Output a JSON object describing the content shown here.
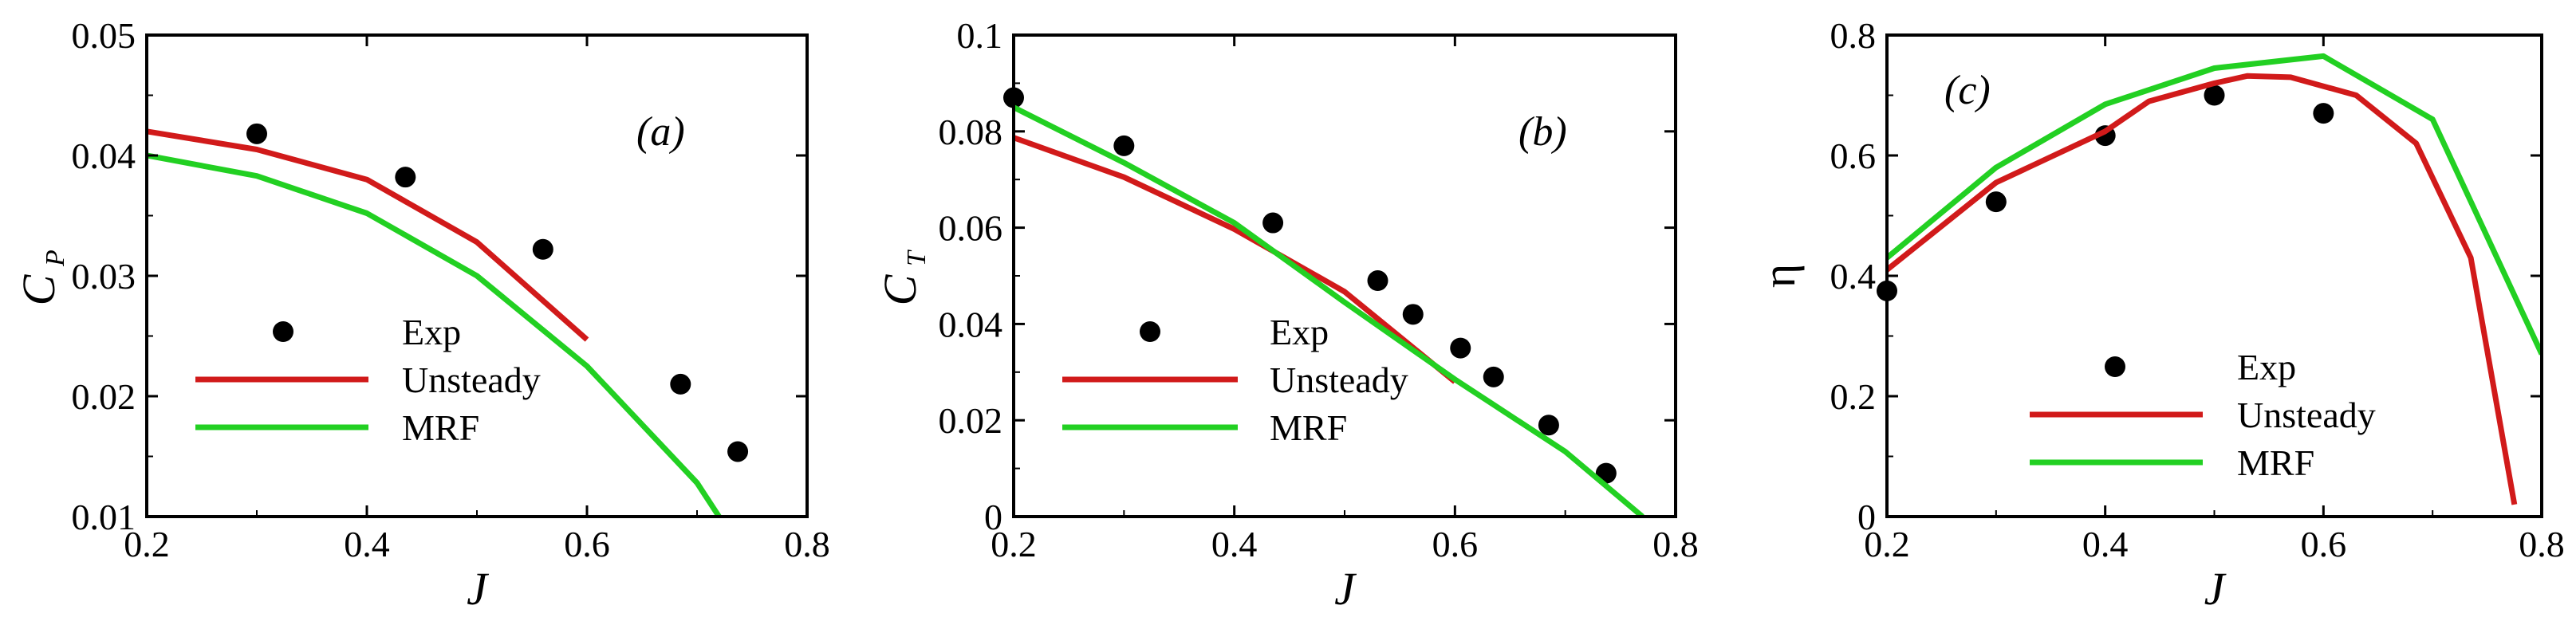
{
  "colors": {
    "exp": "#000000",
    "unsteady": "#d11a1a",
    "mrf": "#22d022",
    "axis": "#000000"
  },
  "legend": {
    "exp": "Exp",
    "unsteady": "Unsteady",
    "mrf": "MRF"
  },
  "chart_data": [
    {
      "type": "line",
      "panel_label": "(a)",
      "xlabel": "J",
      "ylabel_main": "C",
      "ylabel_sub": "P",
      "xlim": [
        0.2,
        0.8
      ],
      "ylim": [
        0.01,
        0.05
      ],
      "xticks": [
        0.2,
        0.4,
        0.6,
        0.8
      ],
      "xtick_labels": [
        "0.2",
        "0.4",
        "0.6",
        "0.8"
      ],
      "yticks": [
        0.01,
        0.02,
        0.03,
        0.04,
        0.05
      ],
      "ytick_labels": [
        "0.01",
        "0.02",
        "0.03",
        "0.04",
        "0.05"
      ],
      "series": [
        {
          "name": "Exp",
          "kind": "scatter",
          "x": [
            0.3,
            0.435,
            0.56,
            0.685,
            0.737
          ],
          "y": [
            0.0418,
            0.0382,
            0.0322,
            0.021,
            0.0154
          ]
        },
        {
          "name": "Unsteady",
          "kind": "line",
          "x": [
            0.2,
            0.3,
            0.4,
            0.5,
            0.6
          ],
          "y": [
            0.042,
            0.0405,
            0.038,
            0.0328,
            0.0247
          ]
        },
        {
          "name": "MRF",
          "kind": "line",
          "x": [
            0.2,
            0.3,
            0.4,
            0.5,
            0.6,
            0.7,
            0.72
          ],
          "y": [
            0.04,
            0.0383,
            0.0352,
            0.03,
            0.0225,
            0.0128,
            0.01
          ]
        }
      ]
    },
    {
      "type": "line",
      "panel_label": "(b)",
      "xlabel": "J",
      "ylabel_main": "C",
      "ylabel_sub": "T",
      "xlim": [
        0.2,
        0.8
      ],
      "ylim": [
        0,
        0.1
      ],
      "xticks": [
        0.2,
        0.4,
        0.6,
        0.8
      ],
      "xtick_labels": [
        "0.2",
        "0.4",
        "0.6",
        "0.8"
      ],
      "yticks": [
        0,
        0.02,
        0.04,
        0.06,
        0.08,
        0.1
      ],
      "ytick_labels": [
        "0",
        "0.02",
        "0.04",
        "0.06",
        "0.08",
        "0.1"
      ],
      "series": [
        {
          "name": "Exp",
          "kind": "scatter",
          "x": [
            0.2,
            0.3,
            0.435,
            0.53,
            0.562,
            0.605,
            0.635,
            0.685,
            0.737
          ],
          "y": [
            0.087,
            0.077,
            0.061,
            0.049,
            0.042,
            0.035,
            0.029,
            0.019,
            0.009
          ]
        },
        {
          "name": "Unsteady",
          "kind": "line",
          "x": [
            0.2,
            0.3,
            0.4,
            0.5,
            0.6
          ],
          "y": [
            0.0787,
            0.0705,
            0.0597,
            0.0467,
            0.028
          ]
        },
        {
          "name": "MRF",
          "kind": "line",
          "x": [
            0.2,
            0.3,
            0.4,
            0.5,
            0.6,
            0.7,
            0.77
          ],
          "y": [
            0.085,
            0.0735,
            0.061,
            0.0445,
            0.0285,
            0.0135,
            0
          ]
        }
      ]
    },
    {
      "type": "line",
      "panel_label": "(c)",
      "xlabel": "J",
      "ylabel_main": "η",
      "ylabel_sub": "",
      "xlim": [
        0.2,
        0.8
      ],
      "ylim": [
        0,
        0.8
      ],
      "xticks": [
        0.2,
        0.4,
        0.6,
        0.8
      ],
      "xtick_labels": [
        "0.2",
        "0.4",
        "0.6",
        "0.8"
      ],
      "yticks": [
        0,
        0.2,
        0.4,
        0.6,
        0.8
      ],
      "ytick_labels": [
        "0",
        "0.2",
        "0.4",
        "0.6",
        "0.8"
      ],
      "series": [
        {
          "name": "Exp",
          "kind": "scatter",
          "x": [
            0.2,
            0.3,
            0.4,
            0.5,
            0.6
          ],
          "y": [
            0.375,
            0.523,
            0.633,
            0.7,
            0.67
          ]
        },
        {
          "name": "Unsteady",
          "kind": "line",
          "x": [
            0.2,
            0.3,
            0.4,
            0.44,
            0.5,
            0.53,
            0.57,
            0.63,
            0.685,
            0.735,
            0.775
          ],
          "y": [
            0.41,
            0.555,
            0.64,
            0.69,
            0.72,
            0.732,
            0.73,
            0.7,
            0.62,
            0.43,
            0.02
          ]
        },
        {
          "name": "MRF",
          "kind": "line",
          "x": [
            0.2,
            0.3,
            0.4,
            0.5,
            0.6,
            0.7,
            0.8
          ],
          "y": [
            0.43,
            0.58,
            0.685,
            0.745,
            0.765,
            0.66,
            0.27
          ]
        }
      ]
    }
  ]
}
